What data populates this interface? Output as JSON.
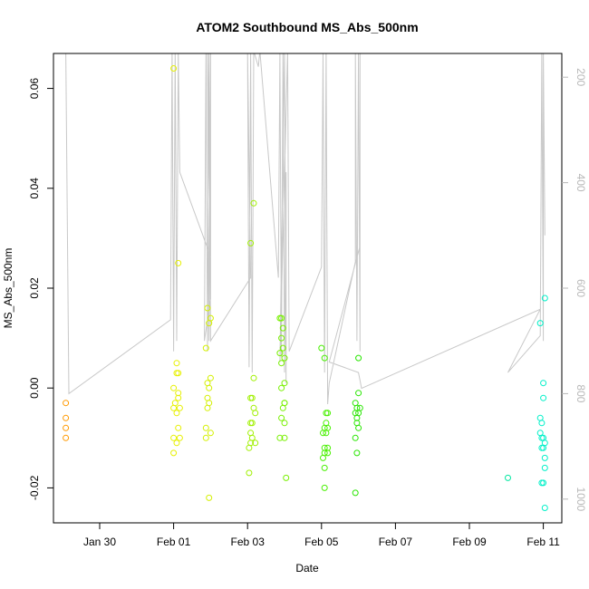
{
  "chart_data": {
    "type": "scatter",
    "title": "ATOM2 Southbound MS_Abs_500nm",
    "xlabel": "Date",
    "ylabel": "MS_Abs_500nm",
    "xlim": [
      "2018-01-28T18:00",
      "2018-02-11T12:00"
    ],
    "ylim": [
      -0.027,
      0.067
    ],
    "y_ticks": [
      -0.02,
      0.0,
      0.02,
      0.04,
      0.06
    ],
    "y_tick_labels": [
      "-0.02",
      "0.00",
      "0.02",
      "0.04",
      "0.06"
    ],
    "x_ticks": [
      "2018-01-30",
      "2018-02-01",
      "2018-02-03",
      "2018-02-05",
      "2018-02-07",
      "2018-02-09",
      "2018-02-11"
    ],
    "x_tick_labels": [
      "Jan 30",
      "Feb 01",
      "Feb 03",
      "Feb 05",
      "Feb 07",
      "Feb 09",
      "Feb 11"
    ],
    "y2_axis": {
      "ticks": [
        200,
        400,
        600,
        800,
        1000
      ],
      "tick_labels": [
        "200",
        "400",
        "600",
        "800",
        "1000"
      ],
      "ylim": [
        1045,
        155
      ],
      "color": "#b8b8b8"
    },
    "series": [
      {
        "color": "#ff9900",
        "points": [
          [
            "2018-01-29T02:00",
            -0.003
          ],
          [
            "2018-01-29T02:00",
            -0.006
          ],
          [
            "2018-01-29T02:00",
            -0.008
          ],
          [
            "2018-01-29T02:00",
            -0.01
          ]
        ]
      },
      {
        "color": "#e6f000",
        "points": [
          [
            "2018-02-01T00:00",
            0.064
          ],
          [
            "2018-02-01T03:00",
            0.025
          ],
          [
            "2018-02-01T02:00",
            0.005
          ],
          [
            "2018-02-01T03:00",
            0.003
          ],
          [
            "2018-02-01T02:00",
            0.003
          ],
          [
            "2018-02-01T00:00",
            0.0
          ],
          [
            "2018-02-01T03:00",
            -0.001
          ],
          [
            "2018-02-01T03:00",
            -0.002
          ],
          [
            "2018-02-01T01:00",
            -0.003
          ],
          [
            "2018-02-01T04:00",
            -0.004
          ],
          [
            "2018-02-01T00:00",
            -0.004
          ],
          [
            "2018-02-01T02:00",
            -0.005
          ],
          [
            "2018-02-01T03:00",
            -0.008
          ],
          [
            "2018-02-01T00:00",
            -0.01
          ],
          [
            "2018-02-01T04:00",
            -0.01
          ],
          [
            "2018-02-01T02:00",
            -0.011
          ],
          [
            "2018-02-01T00:00",
            -0.013
          ]
        ]
      },
      {
        "color": "#d4f000",
        "points": [
          [
            "2018-02-01T22:00",
            0.016
          ],
          [
            "2018-02-02T00:00",
            0.014
          ],
          [
            "2018-02-01T23:00",
            0.013
          ],
          [
            "2018-02-01T21:00",
            0.008
          ],
          [
            "2018-02-02T00:00",
            0.002
          ],
          [
            "2018-02-01T22:00",
            0.001
          ],
          [
            "2018-02-01T23:00",
            0.0
          ],
          [
            "2018-02-01T22:00",
            -0.002
          ],
          [
            "2018-02-01T23:00",
            -0.003
          ],
          [
            "2018-02-01T22:00",
            -0.004
          ],
          [
            "2018-02-01T21:00",
            -0.008
          ],
          [
            "2018-02-02T00:00",
            -0.009
          ],
          [
            "2018-02-01T21:00",
            -0.01
          ],
          [
            "2018-02-01T23:00",
            -0.022
          ]
        ]
      },
      {
        "color": "#a0f000",
        "points": [
          [
            "2018-02-03T04:00",
            0.037
          ],
          [
            "2018-02-03T02:00",
            0.029
          ],
          [
            "2018-02-03T04:00",
            0.002
          ],
          [
            "2018-02-03T02:00",
            -0.002
          ],
          [
            "2018-02-03T03:00",
            -0.002
          ],
          [
            "2018-02-03T04:00",
            -0.004
          ],
          [
            "2018-02-03T05:00",
            -0.005
          ],
          [
            "2018-02-03T02:00",
            -0.007
          ],
          [
            "2018-02-03T03:00",
            -0.007
          ],
          [
            "2018-02-03T02:00",
            -0.009
          ],
          [
            "2018-02-03T03:00",
            -0.01
          ],
          [
            "2018-02-03T05:00",
            -0.011
          ],
          [
            "2018-02-03T02:00",
            -0.011
          ],
          [
            "2018-02-03T01:00",
            -0.012
          ],
          [
            "2018-02-03T01:00",
            -0.017
          ]
        ]
      },
      {
        "color": "#78f000",
        "points": [
          [
            "2018-02-03T21:00",
            0.014
          ],
          [
            "2018-02-03T22:00",
            0.014
          ],
          [
            "2018-02-03T23:00",
            0.012
          ],
          [
            "2018-02-03T22:00",
            0.01
          ],
          [
            "2018-02-03T23:00",
            0.008
          ],
          [
            "2018-02-03T21:00",
            0.007
          ],
          [
            "2018-02-04T00:00",
            0.006
          ],
          [
            "2018-02-03T22:00",
            0.005
          ],
          [
            "2018-02-04T00:00",
            0.001
          ],
          [
            "2018-02-03T22:00",
            0.0
          ],
          [
            "2018-02-04T00:00",
            -0.003
          ],
          [
            "2018-02-04T00:00",
            -0.003
          ],
          [
            "2018-02-03T23:00",
            -0.004
          ],
          [
            "2018-02-03T22:00",
            -0.006
          ],
          [
            "2018-02-04T00:00",
            -0.007
          ],
          [
            "2018-02-03T21:00",
            -0.01
          ],
          [
            "2018-02-04T00:00",
            -0.01
          ],
          [
            "2018-02-04T01:00",
            -0.018
          ]
        ]
      },
      {
        "color": "#48f000",
        "points": [
          [
            "2018-02-05T00:00",
            0.008
          ],
          [
            "2018-02-05T02:00",
            0.006
          ],
          [
            "2018-02-05T03:00",
            -0.005
          ],
          [
            "2018-02-05T04:00",
            -0.005
          ],
          [
            "2018-02-05T03:00",
            -0.007
          ],
          [
            "2018-02-05T04:00",
            -0.008
          ],
          [
            "2018-02-05T02:00",
            -0.008
          ],
          [
            "2018-02-05T03:00",
            -0.009
          ],
          [
            "2018-02-05T01:00",
            -0.009
          ],
          [
            "2018-02-05T02:00",
            -0.012
          ],
          [
            "2018-02-05T04:00",
            -0.012
          ],
          [
            "2018-02-05T02:00",
            -0.013
          ],
          [
            "2018-02-05T04:00",
            -0.013
          ],
          [
            "2018-02-05T01:00",
            -0.014
          ],
          [
            "2018-02-05T02:00",
            -0.016
          ],
          [
            "2018-02-05T02:00",
            -0.02
          ]
        ]
      },
      {
        "color": "#28e600",
        "points": [
          [
            "2018-02-06T00:00",
            0.006
          ],
          [
            "2018-02-06T00:00",
            -0.001
          ],
          [
            "2018-02-05T22:00",
            -0.003
          ],
          [
            "2018-02-05T23:00",
            -0.004
          ],
          [
            "2018-02-06T01:00",
            -0.004
          ],
          [
            "2018-02-05T22:00",
            -0.005
          ],
          [
            "2018-02-06T00:00",
            -0.005
          ],
          [
            "2018-02-05T23:00",
            -0.006
          ],
          [
            "2018-02-05T23:00",
            -0.007
          ],
          [
            "2018-02-06T00:00",
            -0.008
          ],
          [
            "2018-02-05T22:00",
            -0.01
          ],
          [
            "2018-02-05T23:00",
            -0.013
          ],
          [
            "2018-02-05T22:00",
            -0.021
          ]
        ]
      },
      {
        "color": "#00e6a0",
        "points": [
          [
            "2018-02-10T01:00",
            -0.018
          ]
        ]
      },
      {
        "color": "#00f0c8",
        "points": [
          [
            "2018-02-11T01:00",
            0.018
          ],
          [
            "2018-02-10T22:00",
            0.013
          ],
          [
            "2018-02-11T00:00",
            0.001
          ],
          [
            "2018-02-11T00:00",
            -0.002
          ],
          [
            "2018-02-10T22:00",
            -0.006
          ],
          [
            "2018-02-10T23:00",
            -0.007
          ],
          [
            "2018-02-10T22:00",
            -0.009
          ],
          [
            "2018-02-10T23:00",
            -0.01
          ],
          [
            "2018-02-11T00:00",
            -0.01
          ],
          [
            "2018-02-11T01:00",
            -0.011
          ],
          [
            "2018-02-10T23:00",
            -0.012
          ],
          [
            "2018-02-11T00:00",
            -0.012
          ],
          [
            "2018-02-11T01:00",
            -0.014
          ],
          [
            "2018-02-11T01:00",
            -0.016
          ],
          [
            "2018-02-10T23:00",
            -0.019
          ],
          [
            "2018-02-11T00:00",
            -0.019
          ],
          [
            "2018-02-11T01:00",
            -0.024
          ]
        ]
      }
    ],
    "secondary_line": {
      "axis": "y2",
      "color": "#c8c8c8",
      "points": [
        [
          "2018-01-29T02:00",
          150
        ],
        [
          "2018-01-29T04:00",
          800
        ],
        [
          "2018-01-31T22:00",
          660
        ],
        [
          "2018-01-31T23:00",
          150
        ],
        [
          "2018-02-01T00:00",
          720
        ],
        [
          "2018-02-01T01:00",
          150
        ],
        [
          "2018-02-01T02:00",
          700
        ],
        [
          "2018-02-01T03:00",
          150
        ],
        [
          "2018-02-01T04:00",
          380
        ],
        [
          "2018-02-02T00:00",
          540
        ],
        [
          "2018-02-01T22:00",
          150
        ],
        [
          "2018-02-01T23:00",
          700
        ],
        [
          "2018-02-02T00:00",
          150
        ],
        [
          "2018-02-02T00:00",
          620
        ],
        [
          "2018-02-01T20:00",
          700
        ],
        [
          "2018-02-01T21:00",
          150
        ],
        [
          "2018-02-01T22:00",
          720
        ],
        [
          "2018-02-01T23:00",
          150
        ],
        [
          "2018-02-02T00:00",
          700
        ],
        [
          "2018-02-03T02:00",
          580
        ],
        [
          "2018-02-03T00:00",
          150
        ],
        [
          "2018-02-03T01:00",
          750
        ],
        [
          "2018-02-03T02:00",
          150
        ],
        [
          "2018-02-03T03:00",
          760
        ],
        [
          "2018-02-03T04:00",
          150
        ],
        [
          "2018-02-03T07:00",
          180
        ],
        [
          "2018-02-03T08:00",
          150
        ],
        [
          "2018-02-03T20:00",
          580
        ],
        [
          "2018-02-03T21:00",
          150
        ],
        [
          "2018-02-03T22:00",
          730
        ],
        [
          "2018-02-03T23:00",
          150
        ],
        [
          "2018-02-04T00:00",
          760
        ],
        [
          "2018-02-04T01:00",
          380
        ],
        [
          "2018-02-04T01:00",
          780
        ],
        [
          "2018-02-04T00:00",
          150
        ],
        [
          "2018-02-03T21:00",
          740
        ],
        [
          "2018-02-04T02:00",
          150
        ],
        [
          "2018-02-04T03:00",
          720
        ],
        [
          "2018-02-05T00:00",
          560
        ],
        [
          "2018-02-05T01:00",
          150
        ],
        [
          "2018-02-05T02:00",
          760
        ],
        [
          "2018-02-05T03:00",
          150
        ],
        [
          "2018-02-05T04:00",
          820
        ],
        [
          "2018-02-05T05:00",
          780
        ],
        [
          "2018-02-05T22:00",
          550
        ],
        [
          "2018-02-05T22:00",
          150
        ],
        [
          "2018-02-05T23:00",
          700
        ],
        [
          "2018-02-06T00:00",
          150
        ],
        [
          "2018-02-06T01:00",
          720
        ],
        [
          "2018-02-06T01:00",
          150
        ],
        [
          "2018-02-06T01:00",
          520
        ],
        [
          "2018-02-05T05:00",
          740
        ],
        [
          "2018-02-06T00:00",
          760
        ],
        [
          "2018-02-06T02:00",
          790
        ],
        [
          "2018-02-10T22:00",
          640
        ],
        [
          "2018-02-10T01:00",
          760
        ],
        [
          "2018-02-10T22:00",
          690
        ],
        [
          "2018-02-10T23:00",
          150
        ],
        [
          "2018-02-11T00:00",
          700
        ],
        [
          "2018-02-11T00:00",
          150
        ],
        [
          "2018-02-11T01:00",
          500
        ]
      ]
    }
  }
}
